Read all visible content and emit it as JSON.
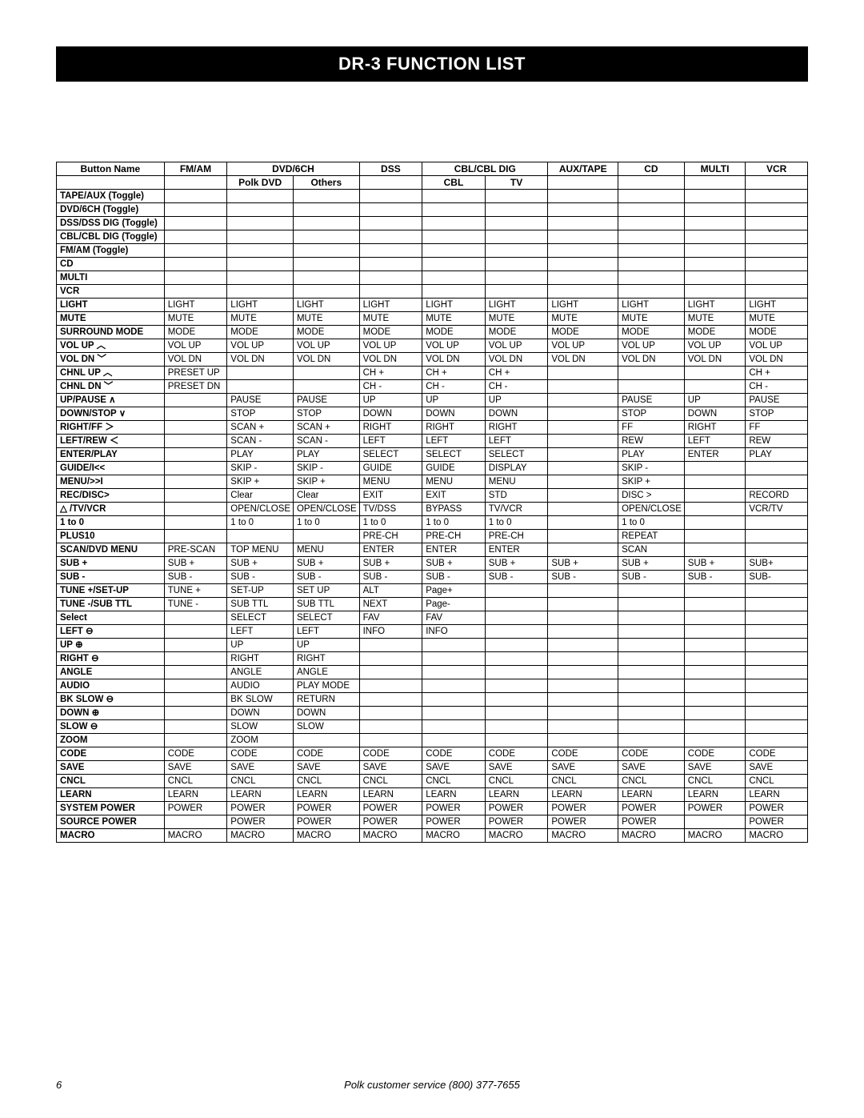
{
  "title": "DR-3 FUNCTION LIST",
  "page_number": "6",
  "footer": "Polk customer service (800) 377-7655",
  "style": {
    "background_color": "#ffffff",
    "title_bg": "#000000",
    "title_color": "#ffffff",
    "border_color": "#000000",
    "body_fontsize": 11.5,
    "header_fontsize": 12,
    "title_fontsize": 22
  },
  "table": {
    "header_row1": [
      "Button Name",
      "FM/AM",
      "DVD/6CH",
      "",
      "DSS",
      "CBL/CBL DIG",
      "",
      "AUX/TAPE",
      "CD",
      "MULTI",
      "VCR"
    ],
    "header_row1_spans": [
      1,
      1,
      2,
      0,
      1,
      2,
      0,
      1,
      1,
      1,
      1
    ],
    "header_row2": [
      "",
      "",
      "Polk DVD",
      "Others",
      "",
      "CBL",
      "TV",
      "",
      "",
      "",
      ""
    ],
    "rows": [
      {
        "label": "TAPE/AUX (Toggle)",
        "cells": [
          "",
          "",
          "",
          "",
          "",
          "",
          "",
          "",
          "",
          ""
        ]
      },
      {
        "label": "DVD/6CH (Toggle)",
        "cells": [
          "",
          "",
          "",
          "",
          "",
          "",
          "",
          "",
          "",
          ""
        ]
      },
      {
        "label": "DSS/DSS DIG (Toggle)",
        "cells": [
          "",
          "",
          "",
          "",
          "",
          "",
          "",
          "",
          "",
          ""
        ]
      },
      {
        "label": "CBL/CBL DIG (Toggle)",
        "cells": [
          "",
          "",
          "",
          "",
          "",
          "",
          "",
          "",
          "",
          ""
        ]
      },
      {
        "label": "FM/AM (Toggle)",
        "cells": [
          "",
          "",
          "",
          "",
          "",
          "",
          "",
          "",
          "",
          ""
        ]
      },
      {
        "label": "CD",
        "cells": [
          "",
          "",
          "",
          "",
          "",
          "",
          "",
          "",
          "",
          ""
        ]
      },
      {
        "label": "MULTI",
        "cells": [
          "",
          "",
          "",
          "",
          "",
          "",
          "",
          "",
          "",
          ""
        ]
      },
      {
        "label": "VCR",
        "cells": [
          "",
          "",
          "",
          "",
          "",
          "",
          "",
          "",
          "",
          ""
        ]
      },
      {
        "label": "LIGHT",
        "cells": [
          "LIGHT",
          "LIGHT",
          "LIGHT",
          "LIGHT",
          "LIGHT",
          "LIGHT",
          "LIGHT",
          "LIGHT",
          "LIGHT",
          "LIGHT"
        ]
      },
      {
        "label": "MUTE",
        "cells": [
          "MUTE",
          "MUTE",
          "MUTE",
          "MUTE",
          "MUTE",
          "MUTE",
          "MUTE",
          "MUTE",
          "MUTE",
          "MUTE"
        ]
      },
      {
        "label": "SURROUND MODE",
        "cells": [
          "MODE",
          "MODE",
          "MODE",
          "MODE",
          "MODE",
          "MODE",
          "MODE",
          "MODE",
          "MODE",
          "MODE"
        ]
      },
      {
        "label": "VOL UP ︿",
        "cells": [
          "VOL UP",
          "VOL UP",
          "VOL UP",
          "VOL UP",
          "VOL UP",
          "VOL UP",
          "VOL UP",
          "VOL UP",
          "VOL UP",
          "VOL UP"
        ]
      },
      {
        "label": "VOL DN ﹀",
        "cells": [
          "VOL DN",
          "VOL DN",
          "VOL DN",
          "VOL DN",
          "VOL DN",
          "VOL DN",
          "VOL DN",
          "VOL DN",
          "VOL DN",
          "VOL DN"
        ]
      },
      {
        "label": "CHNL UP ︿",
        "cells": [
          "PRESET UP",
          "",
          "",
          "CH +",
          "CH +",
          "CH +",
          "",
          "",
          "",
          "CH +"
        ]
      },
      {
        "label": "CHNL DN ﹀",
        "cells": [
          "PRESET DN",
          "",
          "",
          "CH -",
          "CH -",
          "CH -",
          "",
          "",
          "",
          "CH -"
        ]
      },
      {
        "label": "UP/PAUSE ∧",
        "cells": [
          "",
          "PAUSE",
          "PAUSE",
          "UP",
          "UP",
          "UP",
          "",
          "PAUSE",
          "UP",
          "PAUSE"
        ]
      },
      {
        "label": "DOWN/STOP ∨",
        "cells": [
          "",
          "STOP",
          "STOP",
          "DOWN",
          "DOWN",
          "DOWN",
          "",
          "STOP",
          "DOWN",
          "STOP"
        ]
      },
      {
        "label": "RIGHT/FF ＞",
        "cells": [
          "",
          "SCAN +",
          "SCAN +",
          "RIGHT",
          "RIGHT",
          "RIGHT",
          "",
          "FF",
          "RIGHT",
          "FF"
        ]
      },
      {
        "label": "LEFT/REW ＜",
        "cells": [
          "",
          "SCAN -",
          "SCAN -",
          "LEFT",
          "LEFT",
          "LEFT",
          "",
          "REW",
          "LEFT",
          "REW"
        ]
      },
      {
        "label": "ENTER/PLAY",
        "cells": [
          "",
          "PLAY",
          "PLAY",
          "SELECT",
          "SELECT",
          "SELECT",
          "",
          "PLAY",
          "ENTER",
          "PLAY"
        ]
      },
      {
        "label": "GUIDE/I<<",
        "cells": [
          "",
          "SKIP -",
          "SKIP -",
          "GUIDE",
          "GUIDE",
          "DISPLAY",
          "",
          "SKIP -",
          "",
          ""
        ]
      },
      {
        "label": "MENU/>>I",
        "cells": [
          "",
          "SKIP +",
          "SKIP +",
          "MENU",
          "MENU",
          "MENU",
          "",
          "SKIP +",
          "",
          ""
        ]
      },
      {
        "label": "REC/DISC>",
        "cells": [
          "",
          "Clear",
          "Clear",
          "EXIT",
          "EXIT",
          "STD",
          "",
          "DISC >",
          "",
          "RECORD"
        ]
      },
      {
        "label": "△ /TV/VCR",
        "cells": [
          "",
          "OPEN/CLOSE",
          "OPEN/CLOSE",
          "TV/DSS",
          "BYPASS",
          "TV/VCR",
          "",
          "OPEN/CLOSE",
          "",
          "VCR/TV"
        ]
      },
      {
        "label": "1 to 0",
        "cells": [
          "",
          "1 to 0",
          "1 to 0",
          "1 to 0",
          "1 to 0",
          "1 to 0",
          "",
          "1 to 0",
          "",
          ""
        ]
      },
      {
        "label": "PLUS10",
        "cells": [
          "",
          "",
          "",
          "PRE-CH",
          "PRE-CH",
          "PRE-CH",
          "",
          "REPEAT",
          "",
          ""
        ]
      },
      {
        "label": "SCAN/DVD MENU",
        "cells": [
          "PRE-SCAN",
          "TOP MENU",
          "MENU",
          "ENTER",
          "ENTER",
          "ENTER",
          "",
          "SCAN",
          "",
          ""
        ]
      },
      {
        "label": "SUB +",
        "cells": [
          "SUB +",
          "SUB +",
          "SUB +",
          "SUB +",
          "SUB +",
          "SUB +",
          "SUB +",
          "SUB +",
          "SUB +",
          "SUB+"
        ]
      },
      {
        "label": "SUB -",
        "cells": [
          "SUB -",
          "SUB -",
          "SUB -",
          "SUB -",
          "SUB -",
          "SUB -",
          "SUB -",
          "SUB -",
          "SUB -",
          "SUB-"
        ]
      },
      {
        "label": "TUNE +/SET-UP",
        "cells": [
          "TUNE +",
          "SET-UP",
          "SET UP",
          "ALT",
          "Page+",
          "",
          "",
          "",
          "",
          ""
        ]
      },
      {
        "label": "TUNE -/SUB TTL",
        "cells": [
          "TUNE -",
          "SUB TTL",
          "SUB TTL",
          "NEXT",
          "Page-",
          "",
          "",
          "",
          "",
          ""
        ]
      },
      {
        "label": "Select",
        "cells": [
          "",
          "SELECT",
          "SELECT",
          "FAV",
          "FAV",
          "",
          "",
          "",
          "",
          ""
        ]
      },
      {
        "label": "LEFT ⊖",
        "cells": [
          "",
          "LEFT",
          "LEFT",
          "INFO",
          "INFO",
          "",
          "",
          "",
          "",
          ""
        ]
      },
      {
        "label": "UP ⊕",
        "cells": [
          "",
          "UP",
          "UP",
          "",
          "",
          "",
          "",
          "",
          "",
          ""
        ]
      },
      {
        "label": "RIGHT ⊖",
        "cells": [
          "",
          "RIGHT",
          "RIGHT",
          "",
          "",
          "",
          "",
          "",
          "",
          ""
        ]
      },
      {
        "label": "ANGLE",
        "cells": [
          "",
          "ANGLE",
          "ANGLE",
          "",
          "",
          "",
          "",
          "",
          "",
          ""
        ]
      },
      {
        "label": "AUDIO",
        "cells": [
          "",
          "AUDIO",
          "PLAY MODE",
          "",
          "",
          "",
          "",
          "",
          "",
          ""
        ]
      },
      {
        "label": "BK SLOW ⊖",
        "cells": [
          "",
          "BK SLOW",
          "RETURN",
          "",
          "",
          "",
          "",
          "",
          "",
          ""
        ]
      },
      {
        "label": "DOWN ⊕",
        "cells": [
          "",
          "DOWN",
          "DOWN",
          "",
          "",
          "",
          "",
          "",
          "",
          ""
        ]
      },
      {
        "label": "SLOW ⊖",
        "cells": [
          "",
          "SLOW",
          "SLOW",
          "",
          "",
          "",
          "",
          "",
          "",
          ""
        ]
      },
      {
        "label": "ZOOM",
        "cells": [
          "",
          "ZOOM",
          "",
          "",
          "",
          "",
          "",
          "",
          "",
          ""
        ]
      },
      {
        "label": "CODE",
        "cells": [
          "CODE",
          "CODE",
          "CODE",
          "CODE",
          "CODE",
          "CODE",
          "CODE",
          "CODE",
          "CODE",
          "CODE"
        ]
      },
      {
        "label": "SAVE",
        "cells": [
          "SAVE",
          "SAVE",
          "SAVE",
          "SAVE",
          "SAVE",
          "SAVE",
          "SAVE",
          "SAVE",
          "SAVE",
          "SAVE"
        ]
      },
      {
        "label": "CNCL",
        "cells": [
          "CNCL",
          "CNCL",
          "CNCL",
          "CNCL",
          "CNCL",
          "CNCL",
          "CNCL",
          "CNCL",
          "CNCL",
          "CNCL"
        ]
      },
      {
        "label": "LEARN",
        "cells": [
          "LEARN",
          "LEARN",
          "LEARN",
          "LEARN",
          "LEARN",
          "LEARN",
          "LEARN",
          "LEARN",
          "LEARN",
          "LEARN"
        ]
      },
      {
        "label": "SYSTEM POWER",
        "cells": [
          "POWER",
          "POWER",
          "POWER",
          "POWER",
          "POWER",
          "POWER",
          "POWER",
          "POWER",
          "POWER",
          "POWER"
        ]
      },
      {
        "label": "SOURCE POWER",
        "cells": [
          "",
          "POWER",
          "POWER",
          "POWER",
          "POWER",
          "POWER",
          "POWER",
          "POWER",
          "",
          "POWER"
        ]
      },
      {
        "label": "MACRO",
        "cells": [
          "MACRO",
          "MACRO",
          "MACRO",
          "MACRO",
          "MACRO",
          "MACRO",
          "MACRO",
          "MACRO",
          "MACRO",
          "MACRO"
        ]
      }
    ]
  }
}
